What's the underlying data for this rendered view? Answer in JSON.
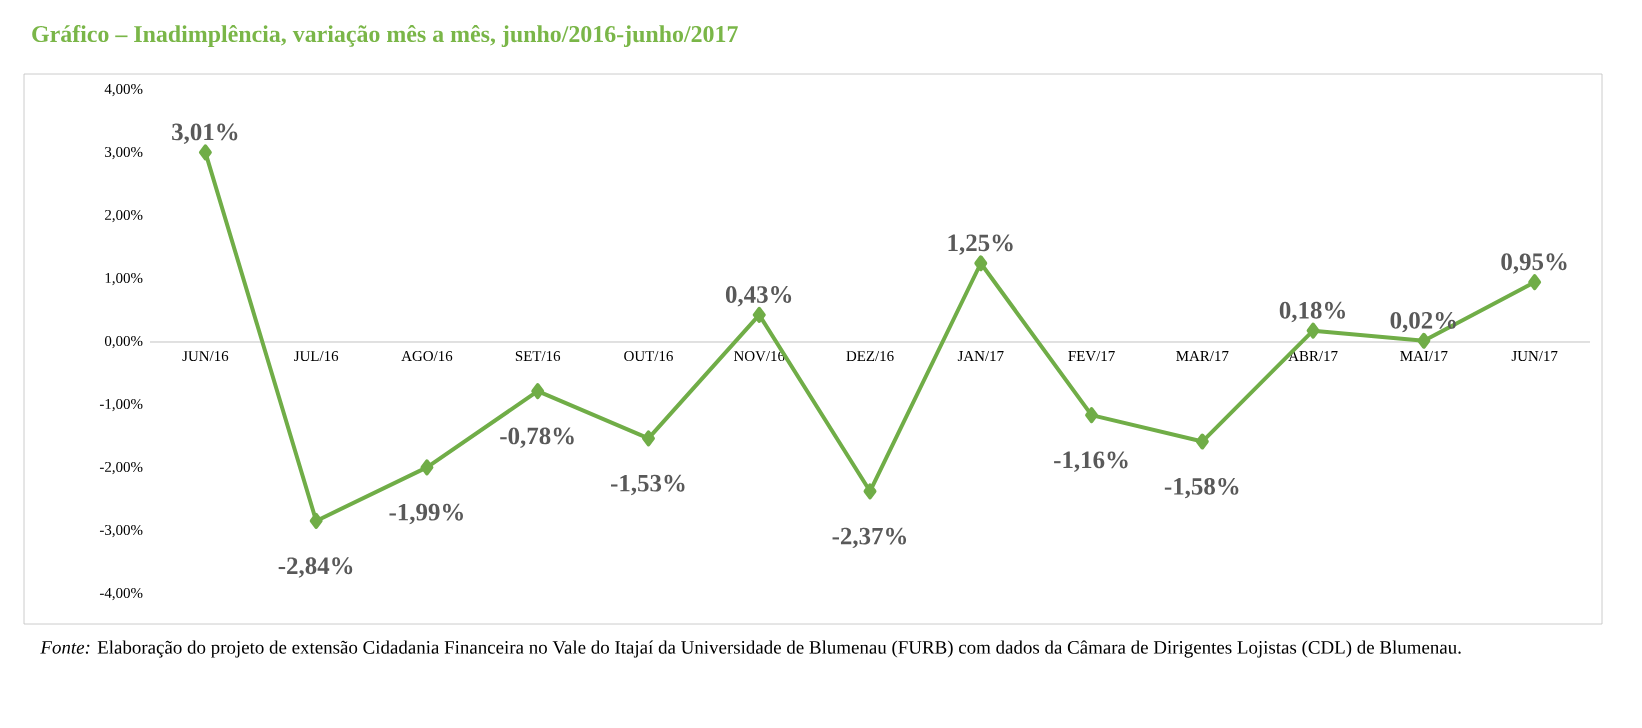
{
  "chart_data": {
    "type": "line",
    "title": "Gráfico – Inadimplência, variação mês a mês, junho/2016-junho/2017",
    "categories": [
      "JUN/16",
      "JUL/16",
      "AGO/16",
      "SET/16",
      "OUT/16",
      "NOV/16",
      "DEZ/16",
      "JAN/17",
      "FEV/17",
      "MAR/17",
      "ABR/17",
      "MAI/17",
      "JUN/17"
    ],
    "values": [
      3.01,
      -2.84,
      -1.99,
      -0.78,
      -1.53,
      0.43,
      -2.37,
      1.25,
      -1.16,
      -1.58,
      0.18,
      0.02,
      0.95
    ],
    "value_labels": [
      "3,01%",
      "-2,84%",
      "-1,99%",
      "-0,78%",
      "-1,53%",
      "0,43%",
      "-2,37%",
      "1,25%",
      "-1,16%",
      "-1,58%",
      "0,18%",
      "0,02%",
      "0,95%"
    ],
    "color": "#70ad47",
    "marker": "diamond",
    "line_style": "solid",
    "ylim": [
      -4,
      4
    ],
    "yticks": [
      {
        "value": -4,
        "label": "-4,00%"
      },
      {
        "value": -3,
        "label": "-3,00%"
      },
      {
        "value": -2,
        "label": "-2,00%"
      },
      {
        "value": -1,
        "label": "-1,00%"
      },
      {
        "value": 0,
        "label": "0,00%"
      },
      {
        "value": 1,
        "label": "1,00%"
      },
      {
        "value": 2,
        "label": "2,00%"
      },
      {
        "value": 3,
        "label": "3,00%"
      },
      {
        "value": 4,
        "label": "4,00%"
      }
    ],
    "annotations": [
      "*Fonte:* Elaboração do projeto de extensão Cidadania Financeira no Vale do Itajaí da Universidade de Blumenau (FURB) com dados da Câmara de Dirigentes Lojistas (CDL) de Blumenau."
    ]
  }
}
